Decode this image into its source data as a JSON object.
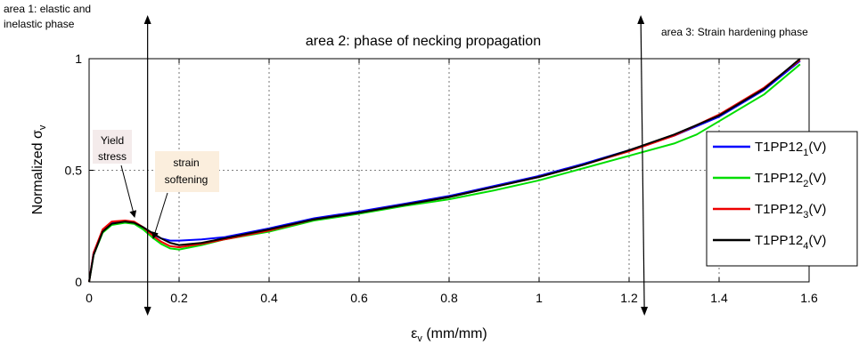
{
  "chart_data": {
    "type": "line",
    "xlabel_main": "ε",
    "xlabel_sub": "v",
    "xlabel_rest": " (mm/mm)",
    "ylabel_main": "Normalized σ",
    "ylabel_sub": "v",
    "xlim": [
      0,
      1.6
    ],
    "ylim": [
      0,
      1
    ],
    "xticks": [
      0,
      0.2,
      0.4,
      0.6,
      0.8,
      1,
      1.2,
      1.4,
      1.6
    ],
    "xtick_labels": [
      "0",
      "0.2",
      "0.4",
      "0.6",
      "0.8",
      "1",
      "1.2",
      "1.4",
      "1.6"
    ],
    "yticks": [
      0,
      0.5,
      1
    ],
    "ytick_labels": [
      "0",
      "0.5",
      "1"
    ],
    "grid": true,
    "legend_position": "right",
    "series": [
      {
        "name_main": "T1PP12",
        "name_sub": "1",
        "name_suffix": "(V)",
        "color": "#0000ff",
        "x": [
          0,
          0.01,
          0.03,
          0.05,
          0.08,
          0.1,
          0.12,
          0.14,
          0.16,
          0.18,
          0.2,
          0.25,
          0.3,
          0.4,
          0.5,
          0.6,
          0.7,
          0.8,
          0.9,
          1.0,
          1.1,
          1.2,
          1.3,
          1.4,
          1.5,
          1.58
        ],
        "y": [
          0,
          0.13,
          0.23,
          0.265,
          0.27,
          0.265,
          0.24,
          0.215,
          0.195,
          0.185,
          0.185,
          0.19,
          0.2,
          0.24,
          0.285,
          0.315,
          0.35,
          0.385,
          0.43,
          0.475,
          0.53,
          0.59,
          0.655,
          0.74,
          0.86,
          0.99
        ]
      },
      {
        "name_main": "T1PP12",
        "name_sub": "2",
        "name_suffix": "(V)",
        "color": "#00dd00",
        "x": [
          0,
          0.01,
          0.03,
          0.05,
          0.08,
          0.1,
          0.12,
          0.14,
          0.16,
          0.18,
          0.2,
          0.25,
          0.3,
          0.4,
          0.5,
          0.6,
          0.7,
          0.8,
          0.9,
          1.0,
          1.1,
          1.2,
          1.3,
          1.35,
          1.4,
          1.5,
          1.58
        ],
        "y": [
          0,
          0.12,
          0.22,
          0.255,
          0.265,
          0.26,
          0.235,
          0.2,
          0.17,
          0.15,
          0.145,
          0.165,
          0.19,
          0.225,
          0.275,
          0.305,
          0.34,
          0.37,
          0.41,
          0.455,
          0.51,
          0.565,
          0.62,
          0.66,
          0.72,
          0.84,
          0.975
        ]
      },
      {
        "name_main": "T1PP12",
        "name_sub": "3",
        "name_suffix": "(V)",
        "color": "#ee0000",
        "x": [
          0,
          0.01,
          0.03,
          0.05,
          0.08,
          0.1,
          0.12,
          0.14,
          0.16,
          0.18,
          0.2,
          0.25,
          0.3,
          0.4,
          0.5,
          0.6,
          0.7,
          0.8,
          0.9,
          1.0,
          1.1,
          1.2,
          1.3,
          1.4,
          1.5,
          1.58
        ],
        "y": [
          0,
          0.13,
          0.235,
          0.27,
          0.275,
          0.27,
          0.245,
          0.21,
          0.18,
          0.16,
          0.155,
          0.17,
          0.19,
          0.23,
          0.28,
          0.31,
          0.345,
          0.38,
          0.425,
          0.47,
          0.525,
          0.585,
          0.655,
          0.75,
          0.87,
          0.995
        ]
      },
      {
        "name_main": "T1PP12",
        "name_sub": "4",
        "name_suffix": "(V)",
        "color": "#000000",
        "x": [
          0,
          0.01,
          0.03,
          0.05,
          0.08,
          0.1,
          0.12,
          0.14,
          0.16,
          0.18,
          0.2,
          0.25,
          0.3,
          0.4,
          0.5,
          0.6,
          0.7,
          0.8,
          0.9,
          1.0,
          1.1,
          1.2,
          1.3,
          1.4,
          1.5,
          1.58
        ],
        "y": [
          0,
          0.12,
          0.225,
          0.26,
          0.27,
          0.265,
          0.245,
          0.22,
          0.195,
          0.175,
          0.165,
          0.175,
          0.195,
          0.235,
          0.28,
          0.31,
          0.345,
          0.38,
          0.425,
          0.47,
          0.525,
          0.59,
          0.66,
          0.745,
          0.865,
          1.0
        ]
      }
    ],
    "annotations": {
      "area1_line1": "area 1: elastic and",
      "area1_line2": "inelastic phase",
      "area2": "area 2: phase of necking propagation",
      "area3": "area 3: Strain hardening phase",
      "yield_line1": "Yield",
      "yield_line2": "stress",
      "softening_line1": "strain",
      "softening_line2": "softening"
    },
    "area_boundaries_x": [
      0.13,
      1.23
    ],
    "colors": {
      "yield_box": "#f4ebeb",
      "softening_box": "#fbeedd"
    }
  }
}
